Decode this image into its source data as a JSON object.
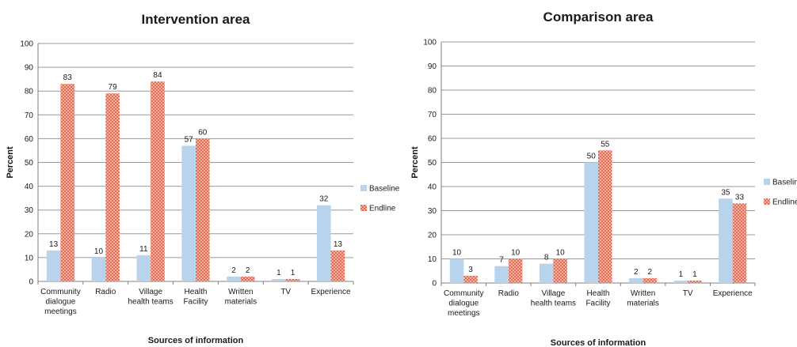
{
  "colors": {
    "baseline": "#b8d3ec",
    "endline_fill": "#f6d3c4",
    "endline_hatch": "#e8624c"
  },
  "chart_data": [
    {
      "type": "bar",
      "title": "Intervention area",
      "xlabel": "Sources of information",
      "ylabel": "Percent",
      "ylim": [
        0,
        100
      ],
      "yticks": [
        "0",
        "10",
        "20",
        "30",
        "40",
        "50",
        "60",
        "70",
        "80",
        "90",
        "100"
      ],
      "categories": [
        "Community dialogue meetings",
        "Radio",
        "Village health teams",
        "Health Facility",
        "Written materials",
        "TV",
        "Experience"
      ],
      "category_lines": [
        [
          "Community",
          "dialogue",
          "meetings"
        ],
        [
          "Radio"
        ],
        [
          "Village",
          "health teams"
        ],
        [
          "Health",
          "Facility"
        ],
        [
          "Written",
          "materials"
        ],
        [
          "TV"
        ],
        [
          "Experience"
        ]
      ],
      "series": [
        {
          "name": "Baseline",
          "values": [
            13,
            10,
            11,
            57,
            2,
            1,
            32
          ]
        },
        {
          "name": "Endline",
          "values": [
            83,
            79,
            84,
            60,
            2,
            1,
            13
          ]
        }
      ],
      "legend": "right",
      "grid": true
    },
    {
      "type": "bar",
      "title": "Comparison area",
      "xlabel": "Sources of information",
      "ylabel": "Percent",
      "ylim": [
        0,
        100
      ],
      "yticks": [
        "0",
        "10",
        "20",
        "30",
        "40",
        "50",
        "60",
        "70",
        "80",
        "90",
        "100"
      ],
      "categories": [
        "Community dialogue meetings",
        "Radio",
        "Village health teams",
        "Health Facility",
        "Written materials",
        "TV",
        "Experience"
      ],
      "category_lines": [
        [
          "Community",
          "dialogue",
          "meetings"
        ],
        [
          "Radio"
        ],
        [
          "Village",
          "health teams"
        ],
        [
          "Health",
          "Facility"
        ],
        [
          "Written",
          "materials"
        ],
        [
          "TV"
        ],
        [
          "Experience"
        ]
      ],
      "series": [
        {
          "name": "Baseline",
          "values": [
            10,
            7,
            8,
            50,
            2,
            1,
            35
          ]
        },
        {
          "name": "Endline",
          "values": [
            3,
            10,
            10,
            55,
            2,
            1,
            33
          ]
        }
      ],
      "legend": "right",
      "grid": true
    }
  ]
}
